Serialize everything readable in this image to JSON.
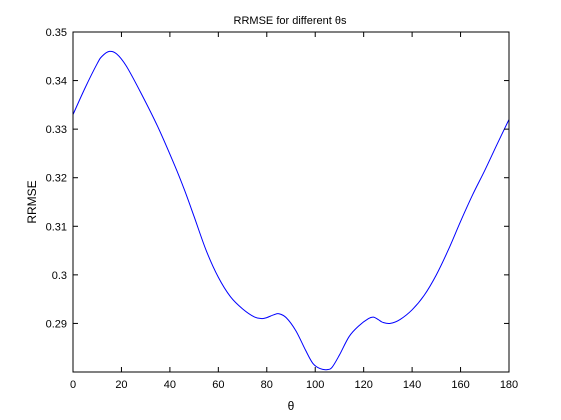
{
  "chart_data": {
    "type": "line",
    "title": "RRMSE for different θs",
    "xlabel": "θ",
    "ylabel": "RRMSE",
    "xlim": [
      0,
      180
    ],
    "ylim": [
      0.28,
      0.35
    ],
    "xticks": [
      0,
      20,
      40,
      60,
      80,
      100,
      120,
      140,
      160,
      180
    ],
    "yticks": [
      0.28,
      0.29,
      0.3,
      0.31,
      0.32,
      0.33,
      0.34,
      0.35
    ],
    "ytick_labels": [
      "",
      "0.29",
      "0.3",
      "0.31",
      "0.32",
      "0.33",
      "0.34",
      "0.35"
    ],
    "grid": false,
    "series": [
      {
        "color": "#0000ff",
        "x": [
          0,
          5,
          10,
          12,
          15,
          18,
          22,
          28,
          35,
          42,
          46,
          50,
          55,
          60,
          65,
          70,
          75,
          78,
          80,
          83,
          85,
          88,
          92,
          96,
          99,
          102,
          105,
          107,
          110,
          114,
          118,
          122,
          124,
          126,
          128,
          131,
          135,
          140,
          145,
          150,
          155,
          160,
          165,
          170,
          175,
          180
        ],
        "y": [
          0.333,
          0.3385,
          0.3435,
          0.345,
          0.346,
          0.3455,
          0.343,
          0.3375,
          0.3305,
          0.3225,
          0.3175,
          0.312,
          0.305,
          0.2995,
          0.2955,
          0.293,
          0.2913,
          0.291,
          0.2912,
          0.2918,
          0.292,
          0.2912,
          0.2885,
          0.2845,
          0.2818,
          0.2807,
          0.2805,
          0.281,
          0.2835,
          0.2873,
          0.2895,
          0.291,
          0.2913,
          0.2908,
          0.2902,
          0.29,
          0.2908,
          0.2928,
          0.2958,
          0.3,
          0.3052,
          0.311,
          0.3165,
          0.3215,
          0.3268,
          0.332
        ]
      }
    ]
  }
}
